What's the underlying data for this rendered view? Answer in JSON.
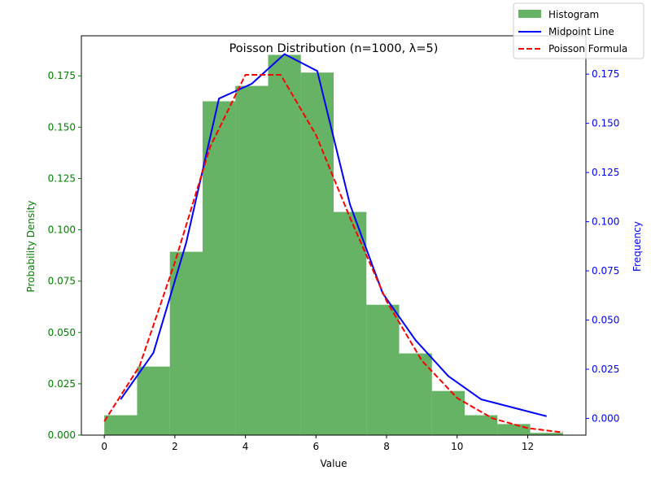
{
  "chart_data": {
    "type": "bar",
    "title": "Poisson Distribution (n=1000, λ=5)",
    "xlabel": "Value",
    "ylabel_left": "Probability Density",
    "ylabel_right": "Frequency",
    "xlim": [
      -0.65,
      13.65
    ],
    "ylim_left": [
      0,
      0.1945
    ],
    "ylim_right": [
      -0.0085,
      0.1945
    ],
    "x_ticks": [
      0,
      2,
      4,
      6,
      8,
      10,
      12
    ],
    "y_ticks_left": [
      0.0,
      0.025,
      0.05,
      0.075,
      0.1,
      0.125,
      0.15,
      0.175
    ],
    "y_ticks_left_labels": [
      "0.000",
      "0.025",
      "0.050",
      "0.075",
      "0.100",
      "0.125",
      "0.150",
      "0.175"
    ],
    "y_ticks_right": [
      0.0,
      0.025,
      0.05,
      0.075,
      0.1,
      0.125,
      0.15,
      0.175
    ],
    "y_ticks_right_labels": [
      "0.000",
      "0.025",
      "0.050",
      "0.075",
      "0.100",
      "0.125",
      "0.150",
      "0.175"
    ],
    "grid": false,
    "legend_placement": "top-right",
    "histogram": {
      "name": "Histogram",
      "color": "#008000",
      "alpha": 0.6,
      "bin_edges": [
        0.0,
        0.929,
        1.857,
        2.786,
        3.714,
        4.643,
        5.571,
        6.5,
        7.429,
        8.357,
        9.286,
        10.214,
        11.143,
        12.071,
        13.0
      ],
      "values": [
        0.0097,
        0.0334,
        0.0893,
        0.1626,
        0.1701,
        0.1852,
        0.1766,
        0.1087,
        0.0635,
        0.0398,
        0.0215,
        0.0097,
        0.0054,
        0.0011
      ]
    },
    "series": [
      {
        "name": "Midpoint Line",
        "axis": "right",
        "color": "#0000ff",
        "style": "solid",
        "x": [
          0.464,
          1.393,
          2.321,
          3.25,
          4.179,
          5.107,
          6.036,
          6.964,
          7.893,
          8.821,
          9.75,
          10.679,
          11.607,
          12.536
        ],
        "y": [
          0.0097,
          0.0334,
          0.0893,
          0.1626,
          0.1701,
          0.1852,
          0.1766,
          0.1087,
          0.0635,
          0.0398,
          0.0215,
          0.0097,
          0.0054,
          0.0011
        ]
      },
      {
        "name": "Poisson Formula",
        "axis": "left",
        "color": "#ff0000",
        "style": "dashed",
        "x": [
          0,
          1,
          2,
          3,
          4,
          5,
          6,
          7,
          8,
          9,
          10,
          11,
          12,
          13
        ],
        "y": [
          0.0067,
          0.0337,
          0.0842,
          0.1404,
          0.1755,
          0.1755,
          0.1462,
          0.1044,
          0.0653,
          0.0363,
          0.0181,
          0.0082,
          0.0034,
          0.0013
        ]
      }
    ],
    "left_axis_color": "#008000",
    "right_axis_color": "#0000ff"
  }
}
